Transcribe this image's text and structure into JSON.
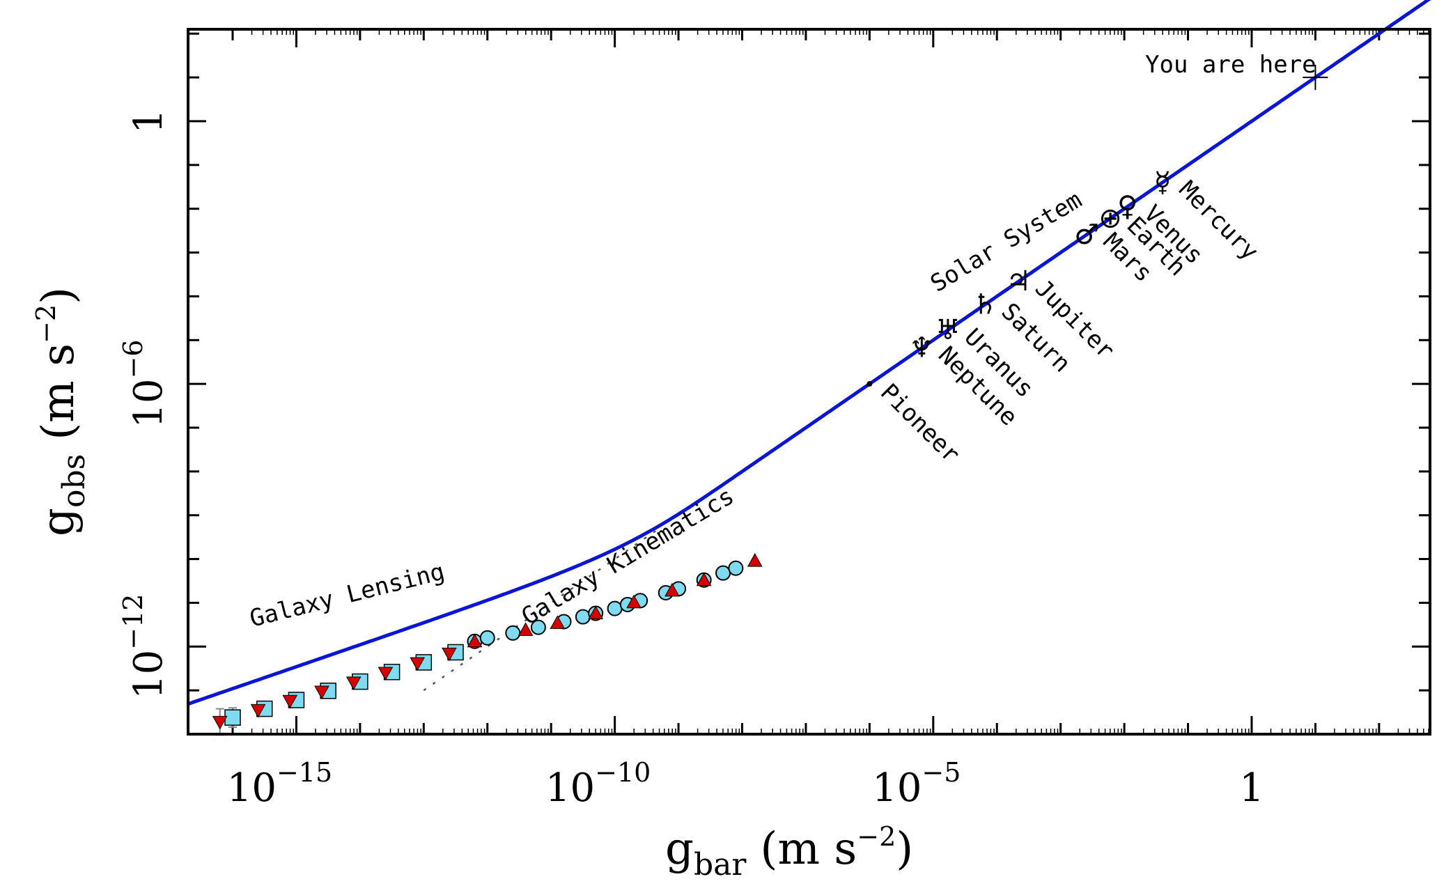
{
  "chart_data": {
    "type": "scatter",
    "xlabel": {
      "base": "g",
      "sub": "bar",
      "unit": "(m s",
      "unit_exp": "−2",
      "close": ")"
    },
    "ylabel": {
      "base": "g",
      "sub": "obs",
      "unit": "(m s",
      "unit_exp": "−2",
      "close": ")"
    },
    "xscale": "log",
    "yscale": "log",
    "xlim_log10": [
      -16.7,
      2.8
    ],
    "ylim_log10": [
      -14.0,
      2.1
    ],
    "x_ticks": [
      {
        "log10": -15,
        "base": "10",
        "exp": "−15"
      },
      {
        "log10": -10,
        "base": "10",
        "exp": "−10"
      },
      {
        "log10": -5,
        "base": "10",
        "exp": "−5"
      },
      {
        "log10": 0,
        "base": "1",
        "exp": ""
      }
    ],
    "y_ticks": [
      {
        "log10": -12,
        "base": "10",
        "exp": "−12"
      },
      {
        "log10": -6,
        "base": "10",
        "exp": "−6"
      },
      {
        "log10": 0,
        "base": "1",
        "exp": ""
      }
    ],
    "colors": {
      "curve": "#0a16d6",
      "circle_fill": "#7fdcf0",
      "square_fill": "#7fdcf0",
      "triangle_fill": "#d40000",
      "frame": "#000000",
      "newtonian_line": "#555555"
    },
    "series": [
      {
        "marker": "circle",
        "points_log10": [
          [
            -12.2,
            -11.88
          ],
          [
            -12.0,
            -11.8
          ],
          [
            -11.6,
            -11.69
          ],
          [
            -11.2,
            -11.56
          ],
          [
            -10.8,
            -11.43
          ],
          [
            -10.5,
            -11.32
          ],
          [
            -10.3,
            -11.24
          ],
          [
            -10.0,
            -11.13
          ],
          [
            -9.8,
            -11.04
          ],
          [
            -9.6,
            -10.95
          ],
          [
            -9.2,
            -10.77
          ],
          [
            -9.0,
            -10.68
          ],
          [
            -8.6,
            -10.48
          ],
          [
            -8.3,
            -10.32
          ],
          [
            -8.1,
            -10.21
          ]
        ]
      },
      {
        "marker": "square",
        "points_log10": [
          [
            -16.0,
            -13.62
          ],
          [
            -15.5,
            -13.42
          ],
          [
            -15.0,
            -13.22
          ],
          [
            -14.5,
            -13.01
          ],
          [
            -14.0,
            -12.8
          ],
          [
            -13.5,
            -12.58
          ],
          [
            -13.0,
            -12.36
          ],
          [
            -12.5,
            -12.13
          ]
        ]
      },
      {
        "marker": "triangle-down",
        "points_log10": [
          [
            -16.2,
            -13.72
          ],
          [
            -15.6,
            -13.45
          ],
          [
            -15.1,
            -13.24
          ],
          [
            -14.6,
            -13.03
          ],
          [
            -14.1,
            -12.82
          ],
          [
            -13.6,
            -12.6
          ],
          [
            -13.1,
            -12.38
          ],
          [
            -12.6,
            -12.16
          ]
        ]
      },
      {
        "marker": "triangle-up",
        "points_log10": [
          [
            -12.2,
            -11.88
          ],
          [
            -11.4,
            -11.62
          ],
          [
            -10.9,
            -11.46
          ],
          [
            -10.3,
            -11.24
          ],
          [
            -9.7,
            -10.99
          ],
          [
            -9.1,
            -10.72
          ],
          [
            -8.6,
            -10.48
          ],
          [
            -7.8,
            -10.04
          ]
        ]
      }
    ],
    "solar_system": [
      {
        "name": "Mercury",
        "symbol": "☿",
        "glog": -1.4
      },
      {
        "name": "Venus",
        "symbol": "♀",
        "glog": -1.95
      },
      {
        "name": "Earth",
        "symbol": "⊕",
        "glog": -2.22
      },
      {
        "name": "Mars",
        "symbol": "♂",
        "glog": -2.59
      },
      {
        "name": "Jupiter",
        "symbol": "♃",
        "glog": -3.66
      },
      {
        "name": "Saturn",
        "symbol": "♄",
        "glog": -4.19
      },
      {
        "name": "Uranus",
        "symbol": "♅",
        "glog": -4.77
      },
      {
        "name": "Neptune",
        "symbol": "♆",
        "glog": -5.18
      }
    ],
    "pioneer_log10": [
      -6.0,
      -6.0
    ],
    "you_are_here_log10": [
      1.0,
      1.0
    ],
    "annotations": {
      "galaxy_lensing": "Galaxy Lensing",
      "galaxy_kinematics": "Galaxy Kinematics",
      "solar_system": "Solar System",
      "pioneer": "Pioneer",
      "you_are_here": "You are here"
    }
  }
}
